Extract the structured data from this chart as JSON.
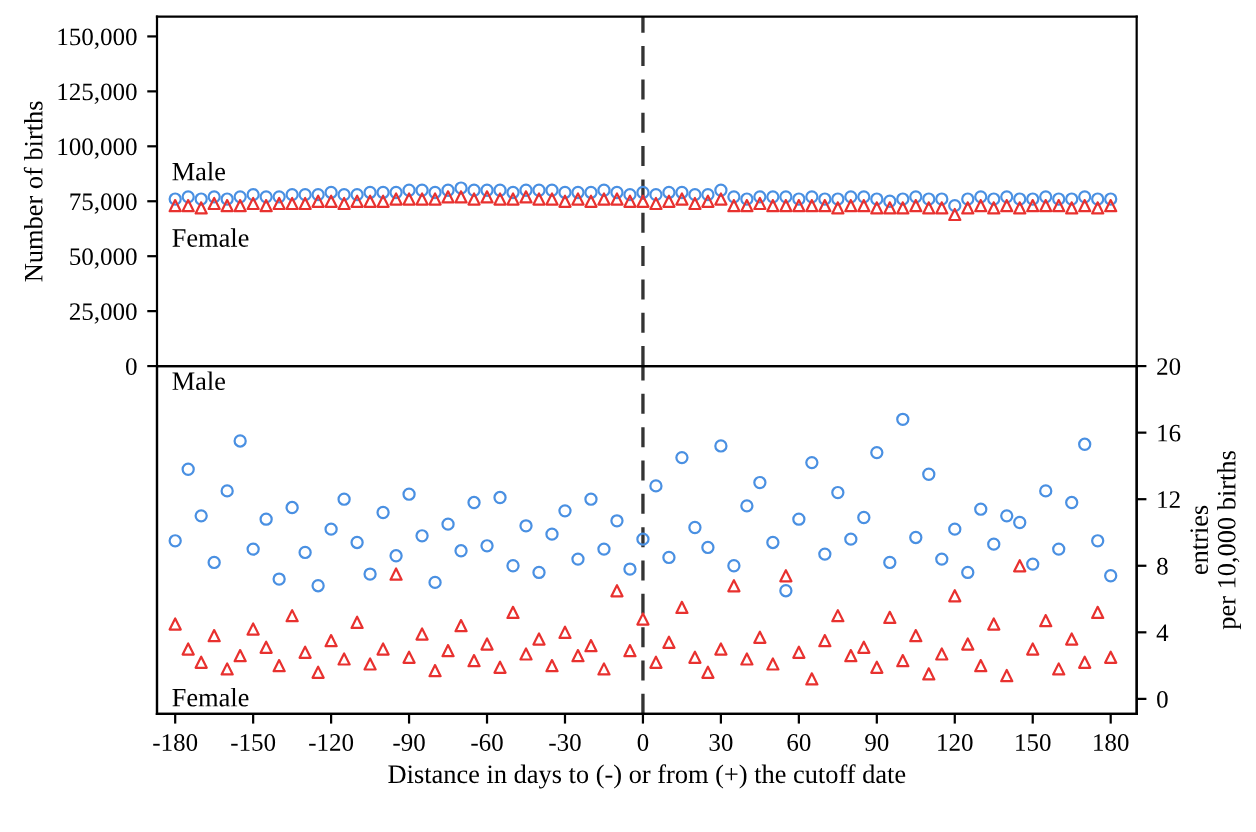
{
  "chart_data": [
    {
      "type": "scatter",
      "ylabel": "Number of births",
      "xlim": [
        -187,
        190
      ],
      "ylim": [
        0,
        159000
      ],
      "yticks": [
        {
          "value": 0,
          "label": "0"
        },
        {
          "value": 25000,
          "label": "25,000"
        },
        {
          "value": 50000,
          "label": "50,000"
        },
        {
          "value": 75000,
          "label": "75,000"
        },
        {
          "value": 100000,
          "label": "100,000"
        },
        {
          "value": 125000,
          "label": "125,000"
        },
        {
          "value": 150000,
          "label": "150,000"
        }
      ],
      "tick_labels": "y",
      "grid": false,
      "legend": false,
      "ref_lines": [
        {
          "axis": "x",
          "value": 0,
          "line_style": "dashed",
          "color": "#333333"
        }
      ],
      "x": [
        -180,
        -175,
        -170,
        -165,
        -160,
        -155,
        -150,
        -145,
        -140,
        -135,
        -130,
        -125,
        -120,
        -115,
        -110,
        -105,
        -100,
        -95,
        -90,
        -85,
        -80,
        -75,
        -70,
        -65,
        -60,
        -55,
        -50,
        -45,
        -40,
        -35,
        -30,
        -25,
        -20,
        -15,
        -10,
        -5,
        0,
        5,
        10,
        15,
        20,
        25,
        30,
        35,
        40,
        45,
        50,
        55,
        60,
        65,
        70,
        75,
        80,
        85,
        90,
        95,
        100,
        105,
        110,
        115,
        120,
        125,
        130,
        135,
        140,
        145,
        150,
        155,
        160,
        165,
        170,
        175,
        180
      ],
      "series": [
        {
          "name": "Male",
          "color": "#4a90e2",
          "marker": "circle",
          "values": [
            76000,
            77000,
            76000,
            77000,
            76000,
            77000,
            78000,
            77000,
            77000,
            78000,
            78000,
            78000,
            79000,
            78000,
            78000,
            79000,
            79000,
            79000,
            80000,
            80000,
            79000,
            80000,
            81000,
            80000,
            80000,
            80000,
            79000,
            80000,
            80000,
            80000,
            79000,
            79000,
            79000,
            80000,
            79000,
            78000,
            79000,
            78000,
            79000,
            79000,
            78000,
            78000,
            80000,
            77000,
            76000,
            77000,
            77000,
            77000,
            76000,
            77000,
            76000,
            76000,
            77000,
            77000,
            76000,
            75000,
            76000,
            77000,
            76000,
            76000,
            73000,
            76000,
            77000,
            76000,
            77000,
            76000,
            76000,
            77000,
            76000,
            76000,
            77000,
            76000,
            76000
          ]
        },
        {
          "name": "Female",
          "color": "#e8312f",
          "marker": "triangle",
          "values": [
            73000,
            73000,
            72000,
            74000,
            73000,
            73000,
            74000,
            73000,
            74000,
            74000,
            74000,
            75000,
            75000,
            74000,
            75000,
            75000,
            75000,
            76000,
            76000,
            76000,
            76000,
            77000,
            77000,
            76000,
            77000,
            76000,
            76000,
            77000,
            76000,
            76000,
            75000,
            76000,
            75000,
            76000,
            76000,
            75000,
            75000,
            74000,
            75000,
            76000,
            74000,
            75000,
            76000,
            73000,
            73000,
            74000,
            73000,
            73000,
            73000,
            73000,
            73000,
            72000,
            73000,
            73000,
            72000,
            72000,
            72000,
            73000,
            72000,
            72000,
            69000,
            72000,
            73000,
            72000,
            73000,
            72000,
            73000,
            73000,
            73000,
            72000,
            73000,
            72000,
            73000
          ]
        }
      ]
    },
    {
      "type": "scatter",
      "xlabel": "Distance in days to (-) or from (+) the cutoff date",
      "y2label": "entries\nper 10,000 births",
      "xlim": [
        -187,
        190
      ],
      "xticks": [
        {
          "value": -180,
          "label": "-180"
        },
        {
          "value": -150,
          "label": "-150"
        },
        {
          "value": -120,
          "label": "-120"
        },
        {
          "value": -90,
          "label": "-90"
        },
        {
          "value": -60,
          "label": "-60"
        },
        {
          "value": -30,
          "label": "-30"
        },
        0,
        30,
        60,
        90,
        120,
        150,
        180
      ],
      "y2lim": [
        -0.9,
        20
      ],
      "y2ticks": [
        0,
        4,
        8,
        12,
        16,
        20
      ],
      "grid": false,
      "legend": false,
      "ref_lines": [
        {
          "axis": "x",
          "value": 0,
          "line_style": "dashed",
          "color": "#333333"
        }
      ],
      "x": [
        -180,
        -175,
        -170,
        -165,
        -160,
        -155,
        -150,
        -145,
        -140,
        -135,
        -130,
        -125,
        -120,
        -115,
        -110,
        -105,
        -100,
        -95,
        -90,
        -85,
        -80,
        -75,
        -70,
        -65,
        -60,
        -55,
        -50,
        -45,
        -40,
        -35,
        -30,
        -25,
        -20,
        -15,
        -10,
        -5,
        0,
        5,
        10,
        15,
        20,
        25,
        30,
        35,
        40,
        45,
        50,
        55,
        60,
        65,
        70,
        75,
        80,
        85,
        90,
        95,
        100,
        105,
        110,
        115,
        120,
        125,
        130,
        135,
        140,
        145,
        150,
        155,
        160,
        165,
        170,
        175,
        180
      ],
      "series": [
        {
          "name": "Male",
          "color": "#4a90e2",
          "marker": "circle",
          "axis": "y2",
          "values": [
            9.5,
            13.8,
            11.0,
            8.2,
            12.5,
            15.5,
            9.0,
            10.8,
            7.2,
            11.5,
            8.8,
            6.8,
            10.2,
            12.0,
            9.4,
            7.5,
            11.2,
            8.6,
            12.3,
            9.8,
            7.0,
            10.5,
            8.9,
            11.8,
            9.2,
            12.1,
            8.0,
            10.4,
            7.6,
            9.9,
            11.3,
            8.4,
            12.0,
            9.0,
            10.7,
            7.8,
            9.6,
            12.8,
            8.5,
            14.5,
            10.3,
            9.1,
            15.2,
            8.0,
            11.6,
            13.0,
            9.4,
            6.5,
            10.8,
            14.2,
            8.7,
            12.4,
            9.6,
            10.9,
            14.8,
            8.2,
            16.8,
            9.7,
            13.5,
            8.4,
            10.2,
            7.6,
            11.4,
            9.3,
            11.0,
            10.6,
            8.1,
            12.5,
            9.0,
            11.8,
            15.3,
            9.5,
            7.4
          ]
        },
        {
          "name": "Female",
          "color": "#e8312f",
          "marker": "triangle",
          "axis": "y2",
          "values": [
            4.5,
            3.0,
            2.2,
            3.8,
            1.8,
            2.6,
            4.2,
            3.1,
            2.0,
            5.0,
            2.8,
            1.6,
            3.5,
            2.4,
            4.6,
            2.1,
            3.0,
            7.5,
            2.5,
            3.9,
            1.7,
            2.9,
            4.4,
            2.3,
            3.3,
            1.9,
            5.2,
            2.7,
            3.6,
            2.0,
            4.0,
            2.6,
            3.2,
            1.8,
            6.5,
            2.9,
            4.8,
            2.2,
            3.4,
            5.5,
            2.5,
            1.6,
            3.0,
            6.8,
            2.4,
            3.7,
            2.1,
            7.4,
            2.8,
            1.2,
            3.5,
            5.0,
            2.6,
            3.1,
            1.9,
            4.9,
            2.3,
            3.8,
            1.5,
            2.7,
            6.2,
            3.3,
            2.0,
            4.5,
            1.4,
            8.0,
            3.0,
            4.7,
            1.8,
            3.6,
            2.2,
            5.2,
            2.5
          ]
        }
      ]
    }
  ]
}
